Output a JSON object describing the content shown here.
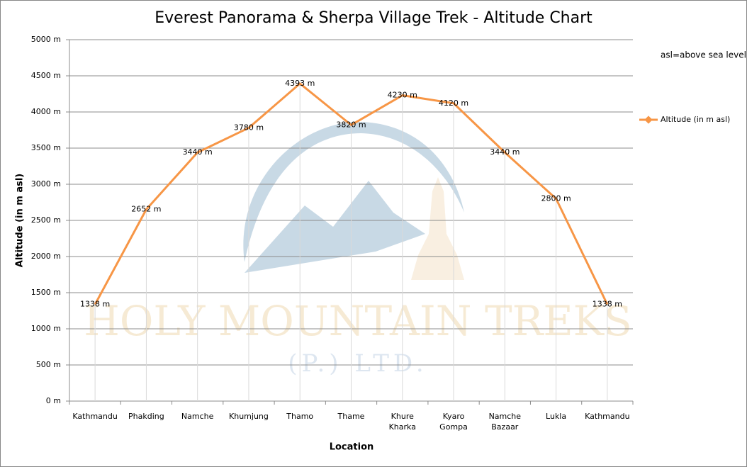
{
  "chart_data": {
    "type": "line",
    "title": "Everest Panorama & Sherpa Village Trek - Altitude Chart",
    "annotation": "asl=above sea level",
    "watermark": [
      "HOLY MOUNTAIN TREKS",
      "(P.) LTD."
    ],
    "x_label": "Location",
    "y_label": "Altitude (in m asl)",
    "categories": [
      "Kathmandu",
      "Phakding",
      "Namche",
      "Khumjung",
      "Thamo",
      "Thame",
      "Khure Kharka",
      "Kyaro Gompa",
      "Namche Bazaar",
      "Lukla",
      "Kathmandu"
    ],
    "series": [
      {
        "name": "Altitude (in  m asl)",
        "color": "#f79646",
        "values": [
          1338,
          2652,
          3440,
          3780,
          4393,
          3820,
          4230,
          4120,
          3440,
          2800,
          1338
        ],
        "value_labels": [
          "1338 m",
          "2652 m",
          "3440 m",
          "3780 m",
          "4393 m",
          "3820 m",
          "4230 m",
          "4120 m",
          "3440 m",
          "2800 m",
          "1338 m"
        ]
      }
    ],
    "ylim": [
      0,
      5000
    ],
    "yticks": [
      {
        "value": 0,
        "label": "0 m"
      },
      {
        "value": 500,
        "label": "500 m"
      },
      {
        "value": 1000,
        "label": "1000 m"
      },
      {
        "value": 1500,
        "label": "1500 m"
      },
      {
        "value": 2000,
        "label": "2000 m"
      },
      {
        "value": 2500,
        "label": "2500 m"
      },
      {
        "value": 3000,
        "label": "3000 m"
      },
      {
        "value": 3500,
        "label": "3500 m"
      },
      {
        "value": 4000,
        "label": "4000 m"
      },
      {
        "value": 4500,
        "label": "4500 m"
      },
      {
        "value": 5000,
        "label": "5000 m"
      }
    ],
    "grid": true,
    "legend": "right"
  }
}
